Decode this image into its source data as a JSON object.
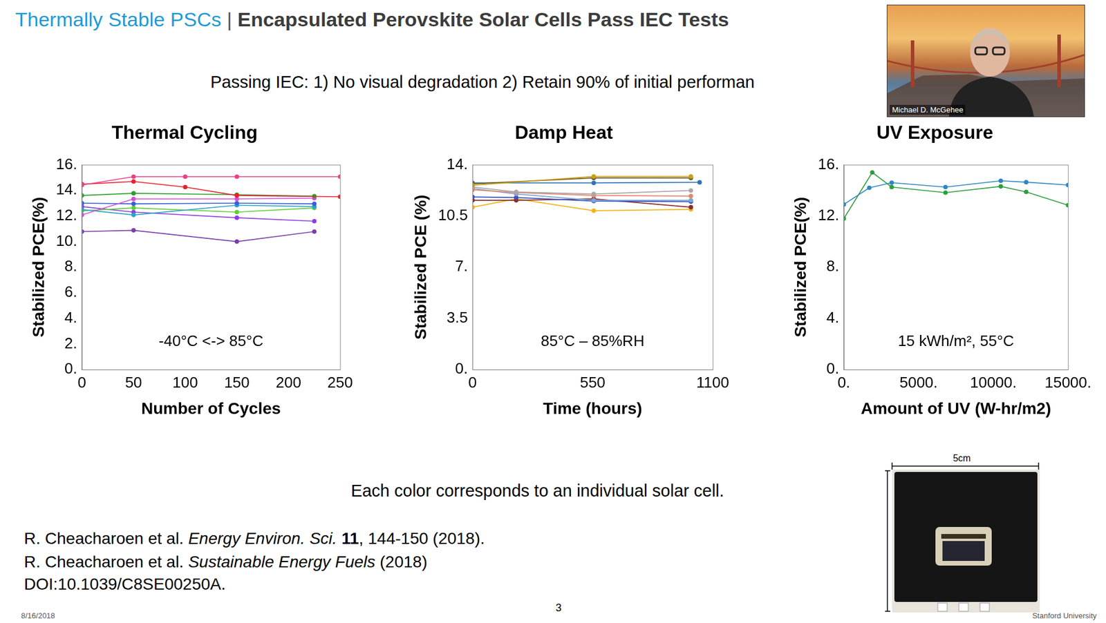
{
  "slide": {
    "kicker": "Thermally Stable PSCs",
    "separator": "|",
    "title": "Encapsulated Perovskite Solar Cells Pass IEC Tests",
    "subtitle": "Passing IEC: 1) No visual degradation 2) Retain 90% of initial performan",
    "note": "Each color corresponds to an individual solar cell.",
    "references": [
      [
        {
          "text": "R. Cheacharoen et al. "
        },
        {
          "text": "Energy Environ. Sci.",
          "italic": true
        },
        {
          "text": " "
        },
        {
          "text": "11",
          "bold": true
        },
        {
          "text": ", 144-150 (2018)."
        }
      ],
      [
        {
          "text": "R. Cheacharoen et al. "
        },
        {
          "text": "Sustainable Energy Fuels",
          "italic": true
        },
        {
          "text": " (2018)"
        }
      ],
      [
        {
          "text": "DOI:10.1039/C8SE00250A."
        }
      ]
    ],
    "date": "8/16/2018",
    "page": 3,
    "footer": "Stanford University",
    "speaker": "Michael D. McGehee",
    "scale_label": "5cm"
  },
  "chart_data": [
    {
      "type": "line",
      "title": "Thermal Cycling",
      "xlabel": "Number of Cycles",
      "ylabel": "Stabilized PCE(%)",
      "annotation": "-40°C <-> 85°C",
      "marker": "circle",
      "grid": false,
      "xlim": [
        0,
        250
      ],
      "xticks": [
        0,
        50,
        100,
        150,
        200,
        250
      ],
      "ylim": [
        0,
        16
      ],
      "yticks": [
        {
          "value": 0,
          "label": "0."
        },
        {
          "value": 2,
          "label": "2."
        },
        {
          "value": 4,
          "label": "4."
        },
        {
          "value": 6,
          "label": "6."
        },
        {
          "value": 8,
          "label": "8."
        },
        {
          "value": 10,
          "label": "10."
        },
        {
          "value": 12,
          "label": "12."
        },
        {
          "value": 14,
          "label": "14."
        },
        {
          "value": 16,
          "label": "16."
        }
      ],
      "series": [
        {
          "color": "#ee3e8a",
          "x": [
            0,
            50,
            100,
            150,
            250
          ],
          "values": [
            14.42,
            15.07,
            15.07,
            15.07,
            15.07
          ]
        },
        {
          "color": "#e8222b",
          "x": [
            0,
            50,
            100,
            150,
            250
          ],
          "values": [
            14.48,
            14.69,
            14.26,
            13.6,
            13.5
          ]
        },
        {
          "color": "#2ca02c",
          "x": [
            0,
            50,
            150,
            225
          ],
          "values": [
            13.6,
            13.77,
            13.66,
            13.55
          ]
        },
        {
          "color": "#d44fd4",
          "x": [
            0,
            50,
            150,
            225
          ],
          "values": [
            12.08,
            13.33,
            13.33,
            13.39
          ]
        },
        {
          "color": "#3a5fd8",
          "x": [
            0,
            50,
            150,
            225
          ],
          "values": [
            13.0,
            12.95,
            13.0,
            12.95
          ]
        },
        {
          "color": "#2aa5c8",
          "x": [
            0,
            50,
            150,
            225
          ],
          "values": [
            12.5,
            12.08,
            12.84,
            12.73
          ]
        },
        {
          "color": "#5fcf3a",
          "x": [
            0,
            50,
            150,
            225
          ],
          "values": [
            12.4,
            12.63,
            12.3,
            12.63
          ]
        },
        {
          "color": "#8c3ee6",
          "x": [
            0,
            50,
            150,
            225
          ],
          "values": [
            12.73,
            12.3,
            11.86,
            11.59
          ]
        },
        {
          "color": "#7a40a8",
          "x": [
            0,
            50,
            150,
            225
          ],
          "values": [
            10.78,
            10.88,
            10.0,
            10.78
          ]
        }
      ]
    },
    {
      "type": "line",
      "title": "Damp Heat",
      "xlabel": "Time (hours)",
      "ylabel": "Stabilized PCE (%)",
      "annotation": "85°C – 85%RH",
      "marker": "circle",
      "grid": false,
      "xlim": [
        0,
        1100
      ],
      "xticks": [
        0,
        550,
        1100
      ],
      "ylim": [
        0,
        14
      ],
      "yticks": [
        {
          "value": 0,
          "label": "0."
        },
        3.5,
        {
          "value": 7,
          "label": "7."
        },
        10.5,
        {
          "value": 14,
          "label": "14."
        }
      ],
      "series": [
        {
          "color": "#c8a020",
          "x": [
            0,
            555,
            1000
          ],
          "values": [
            12.6,
            13.2,
            13.2
          ]
        },
        {
          "color": "#6b5a1e",
          "x": [
            0,
            555,
            1000
          ],
          "values": [
            12.7,
            13.1,
            13.1
          ]
        },
        {
          "color": "#2e75b6",
          "x": [
            0,
            555,
            1040
          ],
          "values": [
            12.76,
            12.76,
            12.8
          ]
        },
        {
          "color": "#a8a8a8",
          "x": [
            0,
            200,
            555,
            1000
          ],
          "values": [
            12.48,
            12.14,
            12.0,
            12.24
          ]
        },
        {
          "color": "#e8846a",
          "x": [
            0,
            200,
            555,
            1000
          ],
          "values": [
            12.29,
            12.1,
            11.9,
            11.86
          ]
        },
        {
          "color": "#7aa7d8",
          "x": [
            0,
            200,
            555,
            1000
          ],
          "values": [
            12.38,
            12.0,
            11.57,
            11.57
          ]
        },
        {
          "color": "#3555c0",
          "x": [
            0,
            200,
            555,
            1000
          ],
          "values": [
            11.8,
            11.76,
            11.52,
            11.48
          ]
        },
        {
          "color": "#8b2a2a",
          "x": [
            0,
            200,
            555,
            1000
          ],
          "values": [
            11.57,
            11.57,
            11.67,
            11.1
          ]
        },
        {
          "color": "#f2b418",
          "x": [
            0,
            200,
            555,
            1000
          ],
          "values": [
            11.1,
            11.67,
            10.86,
            10.95
          ]
        }
      ]
    },
    {
      "type": "line",
      "title": "UV Exposure",
      "xlabel": "Amount of UV (W-hr/m2)",
      "ylabel": "Stabilized PCE(%)",
      "annotation": "15 kWh/m², 55°C",
      "marker": "circle",
      "grid": false,
      "xlim": [
        0,
        15000
      ],
      "xticks": [
        {
          "value": 0,
          "label": "0."
        },
        {
          "value": 5000,
          "label": "5000."
        },
        {
          "value": 10000,
          "label": "10000."
        },
        {
          "value": 15000,
          "label": "15000."
        }
      ],
      "ylim": [
        0,
        16
      ],
      "yticks": [
        {
          "value": 0,
          "label": "0."
        },
        {
          "value": 4,
          "label": "4."
        },
        {
          "value": 8,
          "label": "8."
        },
        {
          "value": 12,
          "label": "12."
        },
        {
          "value": 16,
          "label": "16."
        }
      ],
      "series": [
        {
          "color": "#2e86c1",
          "x": [
            0,
            1700,
            3200,
            6800,
            10500,
            12200,
            15000
          ],
          "values": [
            12.9,
            14.2,
            14.6,
            14.26,
            14.75,
            14.64,
            14.42
          ]
        },
        {
          "color": "#2e9e3e",
          "x": [
            0,
            1900,
            3200,
            6800,
            10500,
            12200,
            15000
          ],
          "values": [
            11.8,
            15.4,
            14.26,
            13.82,
            14.31,
            13.88,
            12.84
          ]
        }
      ]
    }
  ]
}
